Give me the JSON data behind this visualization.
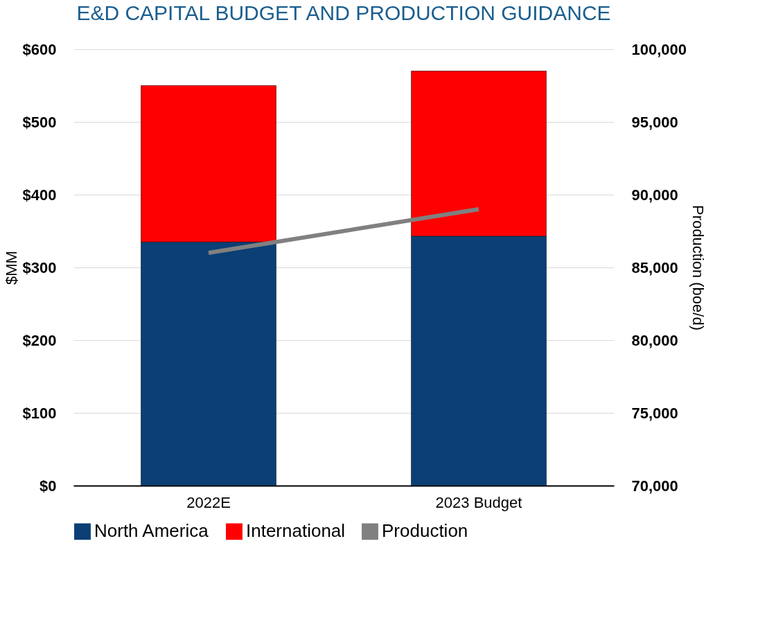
{
  "chart_data": {
    "type": "bar",
    "title": "E&D CAPITAL BUDGET AND PRODUCTION GUIDANCE",
    "ylabel": "$MM",
    "y2label": "Production (boe/d)",
    "categories": [
      "2022E",
      "2023 Budget"
    ],
    "stacked": true,
    "series": [
      {
        "name": "North America",
        "color": "#0b3f75",
        "values": [
          335,
          343
        ]
      },
      {
        "name": "International",
        "color": "#ff0000",
        "values": [
          215,
          227
        ]
      },
      {
        "name": "Production",
        "type": "line",
        "axis": "y2",
        "color": "#808080",
        "values": [
          86000,
          89000
        ]
      }
    ],
    "ylim": [
      0,
      600
    ],
    "yticks": [
      {
        "value": 0,
        "label": "$0"
      },
      {
        "value": 100,
        "label": "$100"
      },
      {
        "value": 200,
        "label": "$200"
      },
      {
        "value": 300,
        "label": "$300"
      },
      {
        "value": 400,
        "label": "$400"
      },
      {
        "value": 500,
        "label": "$500"
      },
      {
        "value": 600,
        "label": "$600"
      }
    ],
    "y2lim": [
      70000,
      100000
    ],
    "y2ticks": [
      {
        "value": 70000,
        "label": "70,000"
      },
      {
        "value": 75000,
        "label": "75,000"
      },
      {
        "value": 80000,
        "label": "80,000"
      },
      {
        "value": 85000,
        "label": "85,000"
      },
      {
        "value": 90000,
        "label": "90,000"
      },
      {
        "value": 95000,
        "label": "95,000"
      },
      {
        "value": 100000,
        "label": "100,000"
      }
    ],
    "grid": "y",
    "legend": "bottom"
  }
}
